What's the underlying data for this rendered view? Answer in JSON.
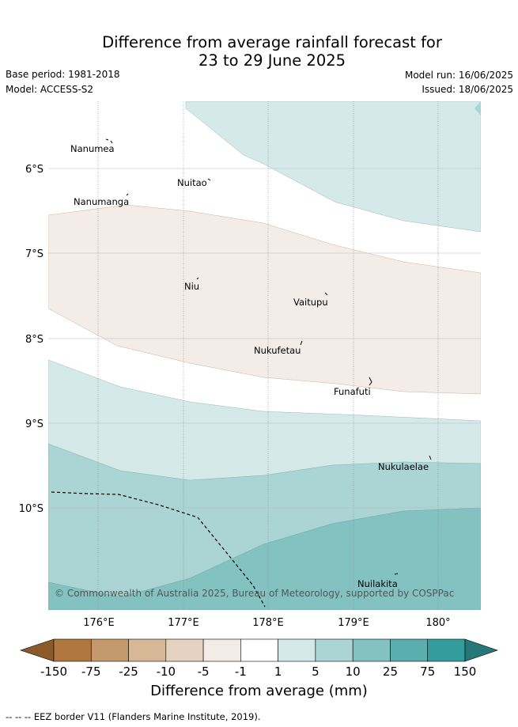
{
  "header": {
    "title_line1": "Difference from average rainfall forecast for",
    "title_line2": "23 to 29 June 2025",
    "base_period": "Base period: 1981-2018",
    "model": "Model: ACCESS-S2",
    "model_run": "Model run: 16/06/2025",
    "issued": "Issued: 18/06/2025"
  },
  "map": {
    "lat_labels": [
      "6°S",
      "7°S",
      "8°S",
      "9°S",
      "10°S"
    ],
    "lon_labels": [
      "176°E",
      "177°E",
      "178°E",
      "179°E",
      "180°"
    ],
    "places": [
      {
        "name": "Nanumea"
      },
      {
        "name": "Nuitao"
      },
      {
        "name": "Nanumanga"
      },
      {
        "name": "Niu"
      },
      {
        "name": "Vaitupu"
      },
      {
        "name": "Nukufetau"
      },
      {
        "name": "Funafuti"
      },
      {
        "name": "Nukulaelae"
      },
      {
        "name": "Nuilakita"
      }
    ],
    "copyright": "© Commonwealth of Australia 2025, Bureau of Meteorology, supported by COSPPac"
  },
  "colorbar": {
    "ticks": [
      "-150",
      "-75",
      "-25",
      "-10",
      "-5",
      "-1",
      "1",
      "5",
      "10",
      "25",
      "75",
      "150"
    ],
    "colors": [
      "#8c5a2a",
      "#b07840",
      "#c49a6c",
      "#d6b896",
      "#e6d2c0",
      "#f3ebe6",
      "#ffffff",
      "#d4e9e8",
      "#aad5d4",
      "#84c2c1",
      "#5aaeae",
      "#349c9c",
      "#267777"
    ],
    "label": "Difference from average (mm)"
  },
  "footer": {
    "eez_legend": "--  --  -- EEZ border V11 (Flanders Marine Institute, 2019)."
  }
}
